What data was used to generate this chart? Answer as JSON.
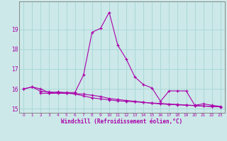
{
  "xlabel": "Windchill (Refroidissement éolien,°C)",
  "ylabel": "",
  "background_color": "#cce8e8",
  "line_color": "#aa00aa",
  "grid_color": "#aad8d8",
  "spine_color": "#888888",
  "xlim": [
    -0.5,
    23.5
  ],
  "ylim": [
    14.8,
    20.4
  ],
  "yticks": [
    15,
    16,
    17,
    18,
    19
  ],
  "xticks": [
    0,
    1,
    2,
    3,
    4,
    5,
    6,
    7,
    8,
    9,
    10,
    11,
    12,
    13,
    14,
    15,
    16,
    17,
    18,
    19,
    20,
    21,
    22,
    23
  ],
  "line1_x": [
    0,
    1,
    2,
    3,
    4,
    5,
    6,
    7,
    8,
    9,
    10,
    11,
    12,
    13,
    14,
    15,
    16,
    17,
    18,
    19,
    20,
    21,
    22,
    23
  ],
  "line1_y": [
    16.0,
    16.1,
    16.0,
    15.8,
    15.85,
    15.8,
    15.75,
    15.65,
    15.55,
    15.5,
    15.45,
    15.4,
    15.38,
    15.35,
    15.32,
    15.28,
    15.25,
    15.22,
    15.2,
    15.18,
    15.16,
    15.14,
    15.12,
    15.1
  ],
  "line2_x": [
    0,
    1,
    2,
    3,
    4,
    5,
    6,
    7,
    8,
    9,
    10,
    11,
    12,
    13,
    14,
    15,
    16,
    17,
    18,
    19,
    20,
    21,
    22,
    23
  ],
  "line2_y": [
    16.0,
    16.1,
    15.88,
    15.85,
    15.82,
    15.82,
    15.82,
    16.7,
    18.85,
    19.05,
    19.85,
    18.2,
    17.5,
    16.6,
    16.22,
    16.05,
    15.38,
    15.9,
    15.9,
    15.9,
    15.18,
    15.25,
    15.18,
    15.12
  ],
  "line3_x": [
    2,
    3,
    4,
    5,
    6,
    7,
    8,
    9,
    10,
    11,
    12,
    13,
    14,
    15,
    16,
    17,
    18,
    19,
    20,
    21,
    22,
    23
  ],
  "line3_y": [
    15.78,
    15.78,
    15.78,
    15.78,
    15.76,
    15.74,
    15.68,
    15.62,
    15.52,
    15.47,
    15.42,
    15.38,
    15.33,
    15.29,
    15.27,
    15.24,
    15.22,
    15.19,
    15.17,
    15.14,
    15.12,
    15.1
  ]
}
